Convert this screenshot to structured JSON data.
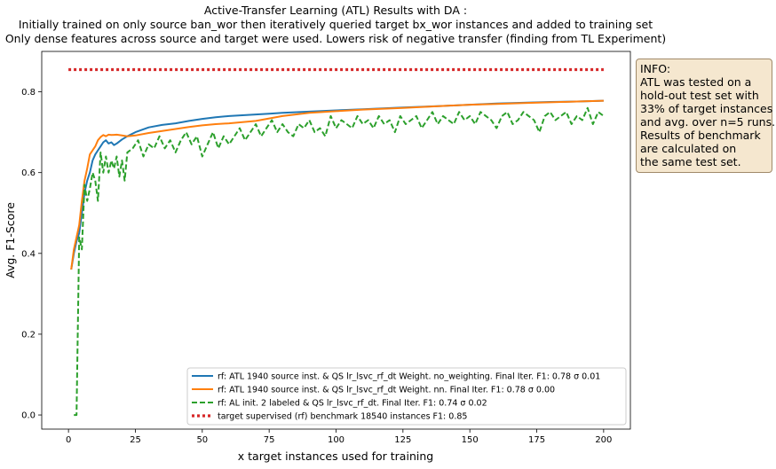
{
  "chart_data": {
    "type": "line",
    "title_lines": [
      "Active-Transfer Learning (ATL) Results with DA :",
      "Initially trained on only source ban_wor then iteratively queried target bx_wor instances and added to training set",
      "Only dense features across source and target were used. Lowers risk of negative transfer (finding from TL Experiment)"
    ],
    "xlabel": "x target instances used for training",
    "ylabel": "Avg. F1-Score",
    "xlim": [
      -10,
      210
    ],
    "ylim": [
      -0.035,
      0.9
    ],
    "xticks": [
      0,
      25,
      50,
      75,
      100,
      125,
      150,
      175,
      200
    ],
    "yticks": [
      "0.0",
      "0.2",
      "0.4",
      "0.6",
      "0.8"
    ],
    "legend_position": "lower right",
    "grid": false,
    "series": [
      {
        "name": "rf: ATL 1940 source inst. & QS lr_lsvc_rf_dt Weight. no_weighting. Final Iter. F1: 0.78 σ 0.01",
        "color": "#1f77b4",
        "style": "solid",
        "x": [
          1,
          2,
          3,
          4,
          5,
          6,
          7,
          8,
          9,
          10,
          11,
          12,
          13,
          14,
          15,
          16,
          17,
          18,
          20,
          22,
          25,
          30,
          35,
          40,
          45,
          50,
          55,
          60,
          65,
          70,
          75,
          80,
          90,
          100,
          110,
          125,
          140,
          150,
          160,
          170,
          180,
          190,
          200
        ],
        "y": [
          0.36,
          0.4,
          0.43,
          0.45,
          0.5,
          0.55,
          0.58,
          0.6,
          0.63,
          0.645,
          0.655,
          0.665,
          0.675,
          0.68,
          0.672,
          0.675,
          0.668,
          0.672,
          0.682,
          0.69,
          0.7,
          0.712,
          0.718,
          0.722,
          0.728,
          0.733,
          0.737,
          0.74,
          0.742,
          0.744,
          0.746,
          0.748,
          0.751,
          0.754,
          0.757,
          0.761,
          0.765,
          0.768,
          0.771,
          0.773,
          0.775,
          0.776,
          0.778
        ]
      },
      {
        "name": "rf: ATL 1940 source inst. & QS lr_lsvc_rf_dt Weight. nn. Final Iter. F1: 0.78 σ 0.00",
        "color": "#ff7f0e",
        "style": "solid",
        "x": [
          1,
          2,
          3,
          4,
          5,
          6,
          7,
          8,
          9,
          10,
          11,
          12,
          13,
          14,
          15,
          16,
          18,
          20,
          22,
          25,
          30,
          35,
          40,
          45,
          50,
          55,
          60,
          70,
          80,
          90,
          100,
          110,
          125,
          140,
          150,
          160,
          170,
          180,
          190,
          200
        ],
        "y": [
          0.36,
          0.41,
          0.44,
          0.47,
          0.53,
          0.58,
          0.61,
          0.645,
          0.655,
          0.665,
          0.68,
          0.688,
          0.693,
          0.69,
          0.694,
          0.693,
          0.694,
          0.692,
          0.69,
          0.692,
          0.698,
          0.703,
          0.708,
          0.713,
          0.717,
          0.72,
          0.722,
          0.728,
          0.74,
          0.748,
          0.752,
          0.756,
          0.76,
          0.765,
          0.768,
          0.77,
          0.772,
          0.774,
          0.776,
          0.778
        ]
      },
      {
        "name": "rf: AL init. 2 labeled & QS lr_lsvc_rf_dt. Final Iter. F1: 0.74 σ 0.02",
        "color": "#2ca02c",
        "style": "dashed",
        "x": [
          2,
          3,
          4,
          5,
          6,
          7,
          8,
          9,
          10,
          11,
          12,
          13,
          14,
          15,
          16,
          17,
          18,
          19,
          20,
          21,
          22,
          24,
          26,
          28,
          30,
          32,
          34,
          36,
          38,
          40,
          42,
          44,
          46,
          48,
          50,
          52,
          54,
          56,
          58,
          60,
          62,
          64,
          66,
          68,
          70,
          72,
          74,
          76,
          78,
          80,
          82,
          84,
          86,
          88,
          90,
          92,
          94,
          96,
          98,
          100,
          102,
          104,
          106,
          108,
          110,
          112,
          114,
          116,
          118,
          120,
          122,
          124,
          126,
          128,
          130,
          132,
          134,
          136,
          138,
          140,
          142,
          144,
          146,
          148,
          150,
          152,
          154,
          156,
          158,
          160,
          162,
          164,
          166,
          168,
          170,
          172,
          174,
          176,
          178,
          180,
          182,
          184,
          186,
          188,
          190,
          192,
          194,
          196,
          198,
          200
        ],
        "y": [
          0.0,
          0.0,
          0.44,
          0.41,
          0.57,
          0.53,
          0.56,
          0.6,
          0.58,
          0.53,
          0.65,
          0.6,
          0.64,
          0.6,
          0.63,
          0.61,
          0.64,
          0.59,
          0.63,
          0.58,
          0.65,
          0.66,
          0.68,
          0.64,
          0.67,
          0.66,
          0.69,
          0.66,
          0.68,
          0.65,
          0.68,
          0.7,
          0.67,
          0.69,
          0.64,
          0.67,
          0.7,
          0.66,
          0.69,
          0.67,
          0.69,
          0.71,
          0.68,
          0.7,
          0.72,
          0.69,
          0.71,
          0.73,
          0.7,
          0.72,
          0.7,
          0.69,
          0.72,
          0.71,
          0.73,
          0.7,
          0.71,
          0.69,
          0.74,
          0.71,
          0.73,
          0.72,
          0.71,
          0.74,
          0.72,
          0.73,
          0.71,
          0.74,
          0.72,
          0.73,
          0.7,
          0.74,
          0.72,
          0.73,
          0.74,
          0.71,
          0.73,
          0.75,
          0.72,
          0.74,
          0.73,
          0.72,
          0.75,
          0.73,
          0.74,
          0.72,
          0.75,
          0.74,
          0.73,
          0.71,
          0.74,
          0.75,
          0.72,
          0.73,
          0.75,
          0.74,
          0.73,
          0.7,
          0.74,
          0.75,
          0.73,
          0.74,
          0.75,
          0.72,
          0.74,
          0.73,
          0.76,
          0.72,
          0.75,
          0.74
        ]
      },
      {
        "name": "target supervised (rf) benchmark 18540 instances F1: 0.85",
        "color": "#d62728",
        "style": "dotted",
        "x": [
          0,
          200
        ],
        "y": [
          0.855,
          0.855
        ]
      }
    ]
  },
  "info_box": {
    "lines": [
      "INFO:",
      "ATL was tested on a",
      "hold-out test set with",
      "33% of target instances",
      "and avg. over n=5 runs.",
      "Results of benchmark",
      "are calculated on",
      "the same test set."
    ]
  }
}
